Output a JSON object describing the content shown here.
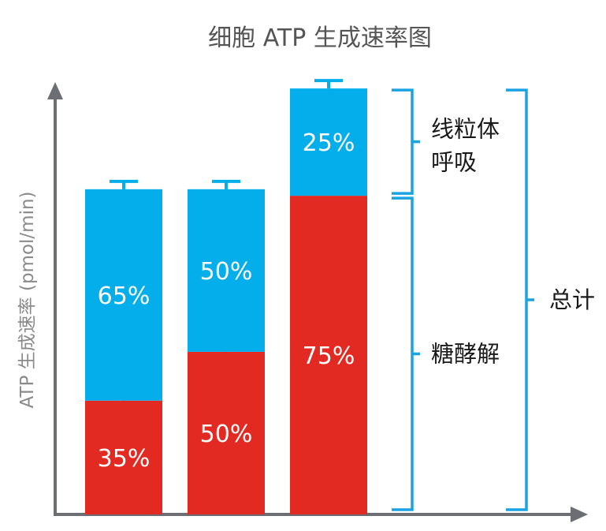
{
  "chart_data": {
    "type": "bar",
    "stacked": true,
    "title": "细胞 ATP 生成速率图",
    "xlabel": "",
    "ylabel": "ATP 生成速率 (pmol/min)",
    "categories": [
      "",
      "",
      ""
    ],
    "totals": [
      100,
      100,
      131
    ],
    "series": [
      {
        "name": "糖酵解",
        "color": "#e32a22",
        "percent_labels": [
          "35%",
          "50%",
          "75%"
        ],
        "values": [
          35,
          50,
          98
        ]
      },
      {
        "name": "线粒体呼吸",
        "color": "#04aeea",
        "percent_labels": [
          "65%",
          "50%",
          "25%"
        ],
        "values": [
          65,
          50,
          33
        ]
      }
    ],
    "annotations": {
      "mito": [
        "线粒体",
        "呼吸"
      ],
      "glyco": "糖酵解",
      "total": "总计"
    },
    "axis_color": "#6b6e72",
    "bracket_color": "#1aa3e0",
    "ylim": [
      0,
      140
    ],
    "grid": false
  }
}
